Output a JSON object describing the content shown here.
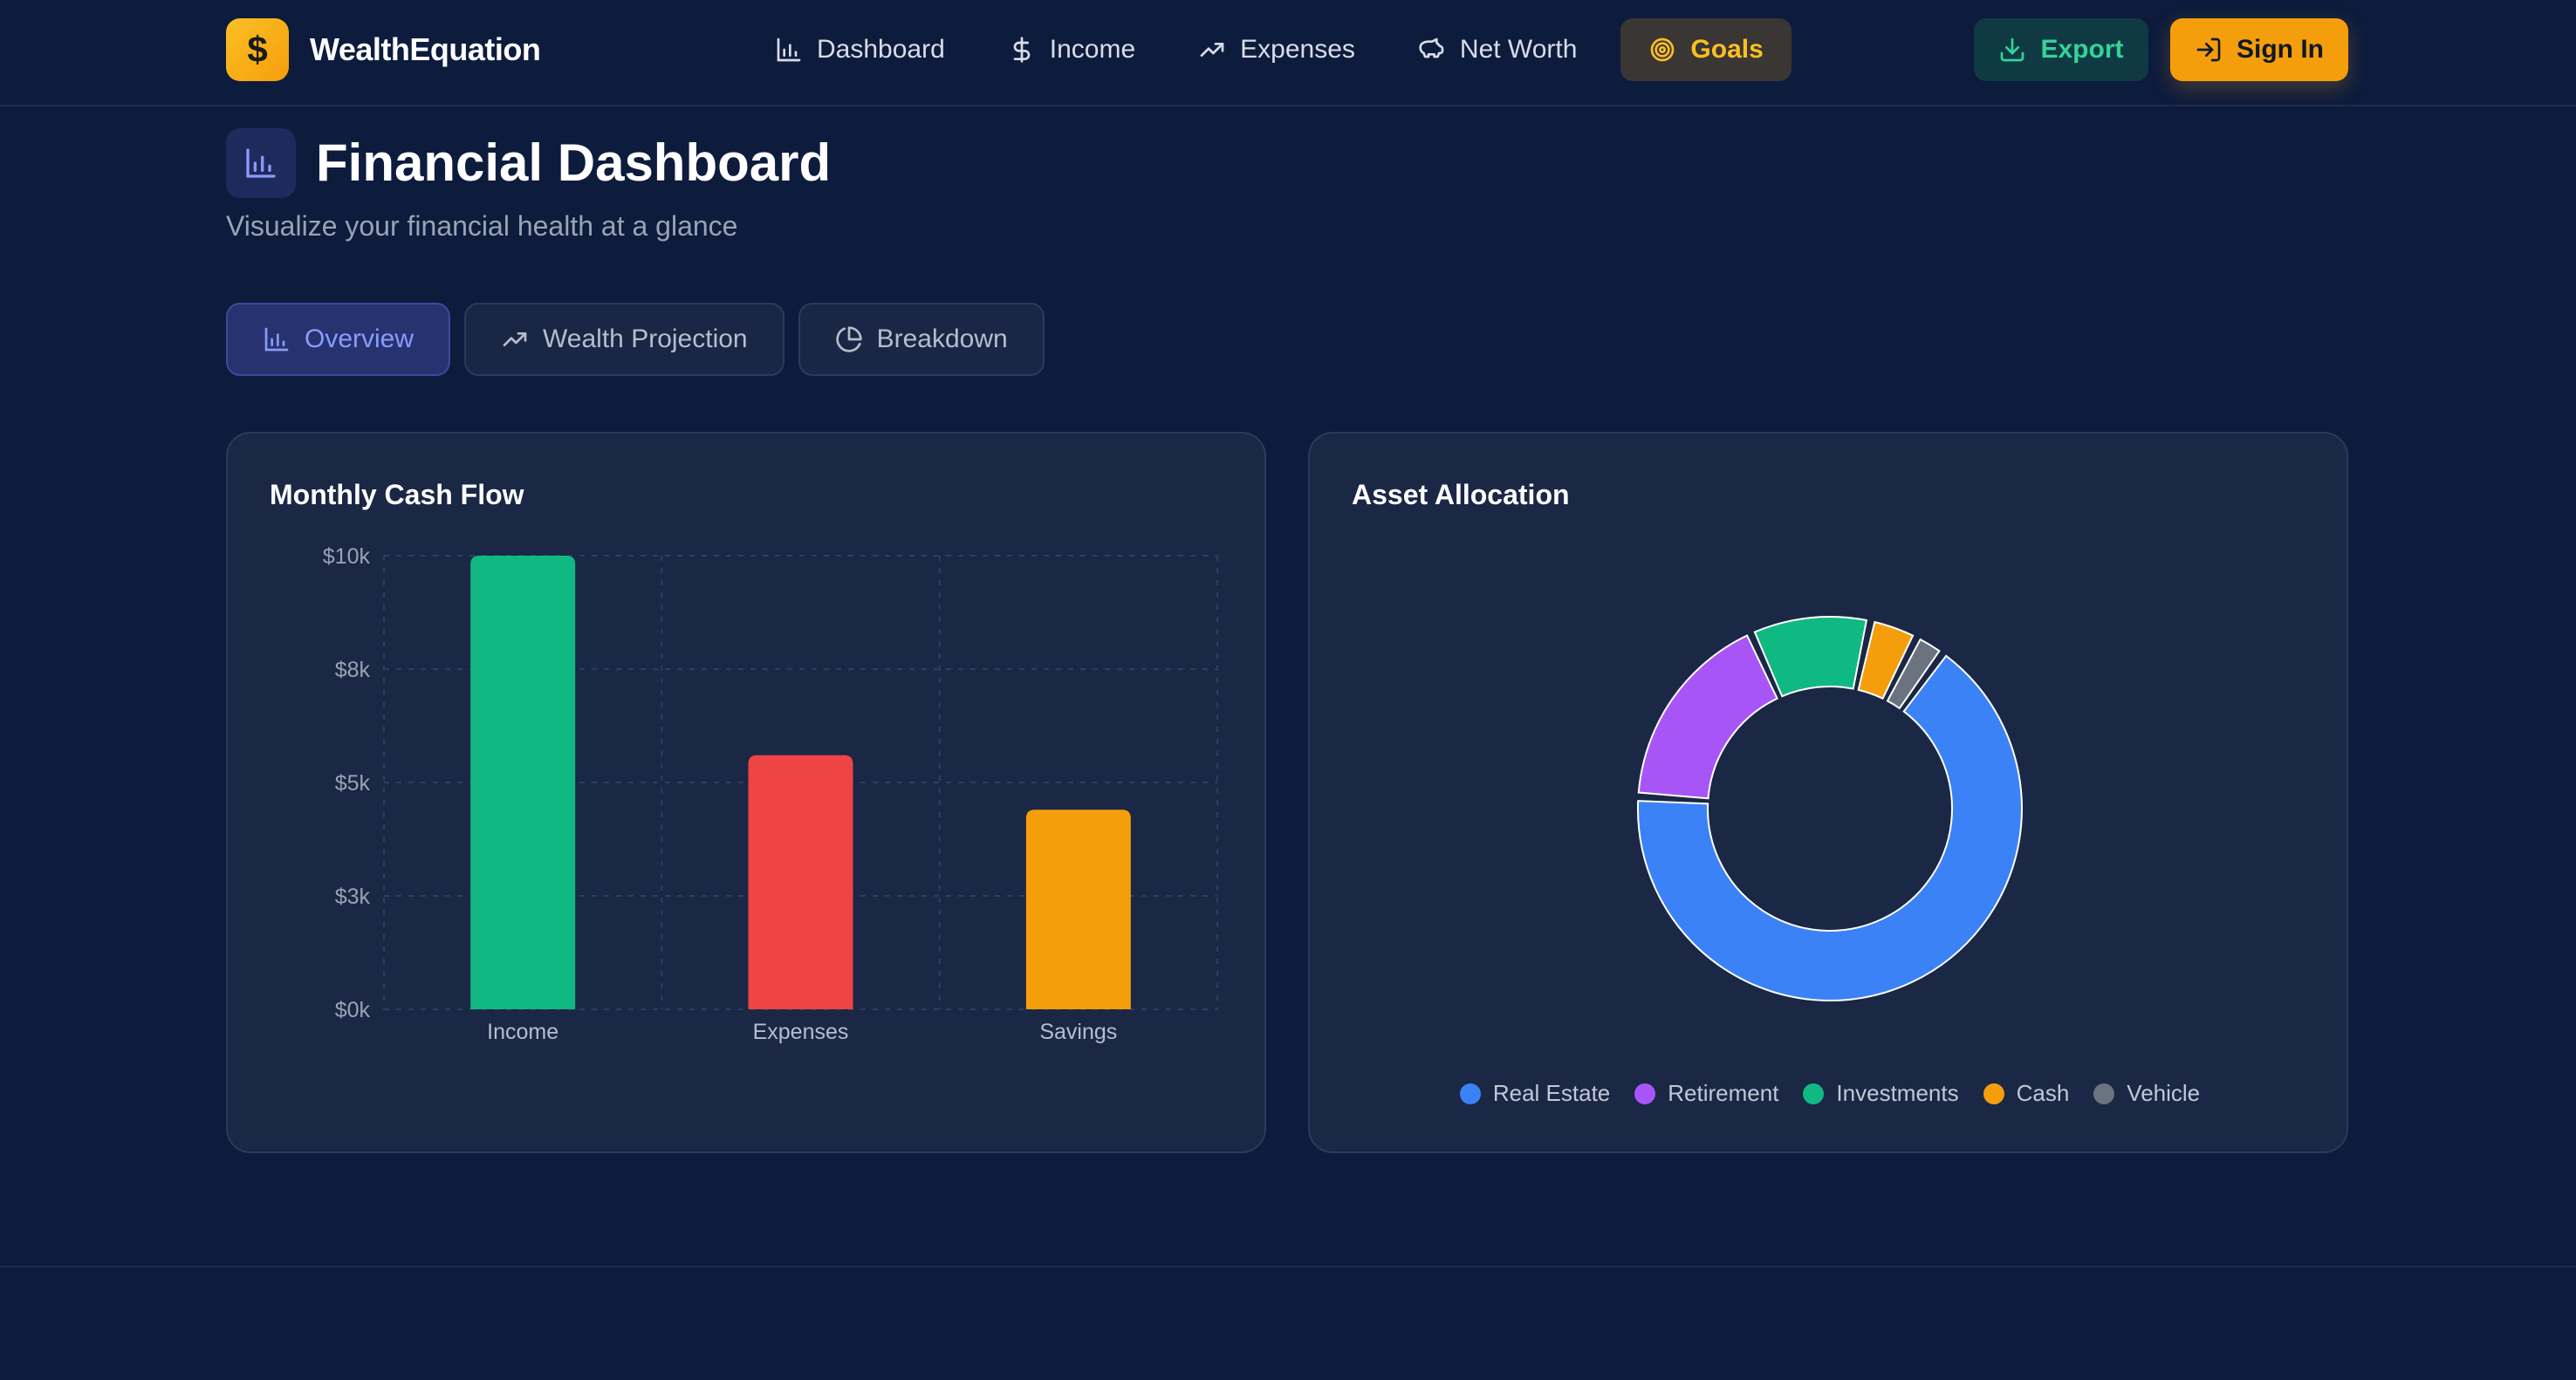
{
  "brand": {
    "name": "WealthEquation",
    "logo_glyph": "$",
    "logo_icon": "dollar-icon"
  },
  "nav": {
    "items": [
      {
        "label": "Dashboard",
        "icon": "bar-chart-icon"
      },
      {
        "label": "Income",
        "icon": "dollar-icon"
      },
      {
        "label": "Expenses",
        "icon": "trending-up-icon"
      },
      {
        "label": "Net Worth",
        "icon": "piggy-bank-icon"
      },
      {
        "label": "Goals",
        "icon": "target-icon",
        "highlight": true
      }
    ]
  },
  "actions": {
    "export_label": "Export",
    "signin_label": "Sign In"
  },
  "page": {
    "title": "Financial Dashboard",
    "subtitle": "Visualize your financial health at a glance"
  },
  "tabs": [
    {
      "label": "Overview",
      "icon": "bar-chart-icon",
      "active": true
    },
    {
      "label": "Wealth Projection",
      "icon": "trending-up-icon",
      "active": false
    },
    {
      "label": "Breakdown",
      "icon": "pie-chart-icon",
      "active": false
    }
  ],
  "cards": {
    "cash_flow_title": "Monthly Cash Flow",
    "allocation_title": "Asset Allocation"
  },
  "colors": {
    "accent": "#f59e0b",
    "income": "#10b981",
    "expenses": "#ef4444",
    "savings": "#f59e0b",
    "real_estate": "#3b82f6",
    "retirement": "#a855f7",
    "investments": "#10b981",
    "cash": "#f59e0b",
    "vehicle": "#6b7280"
  },
  "chart_data": [
    {
      "type": "bar",
      "title": "Monthly Cash Flow",
      "categories": [
        "Income",
        "Expenses",
        "Savings"
      ],
      "values": [
        10000,
        5600,
        4400
      ],
      "colors": [
        "#10b981",
        "#ef4444",
        "#f59e0b"
      ],
      "ylim": [
        0,
        10000
      ],
      "yticks": [
        0,
        2500,
        5000,
        7500,
        10000
      ],
      "ytick_labels": [
        "$0k",
        "$3k",
        "$5k",
        "$8k",
        "$10k"
      ],
      "grid": true,
      "xlabel": "",
      "ylabel": ""
    },
    {
      "type": "pie",
      "title": "Asset Allocation",
      "donut": true,
      "labels": [
        "Real Estate",
        "Retirement",
        "Investments",
        "Cash",
        "Vehicle"
      ],
      "values": [
        65,
        17,
        10,
        4,
        2.5
      ],
      "colors": [
        "#3b82f6",
        "#a855f7",
        "#10b981",
        "#f59e0b",
        "#6b7280"
      ],
      "legend": "bottom"
    }
  ]
}
